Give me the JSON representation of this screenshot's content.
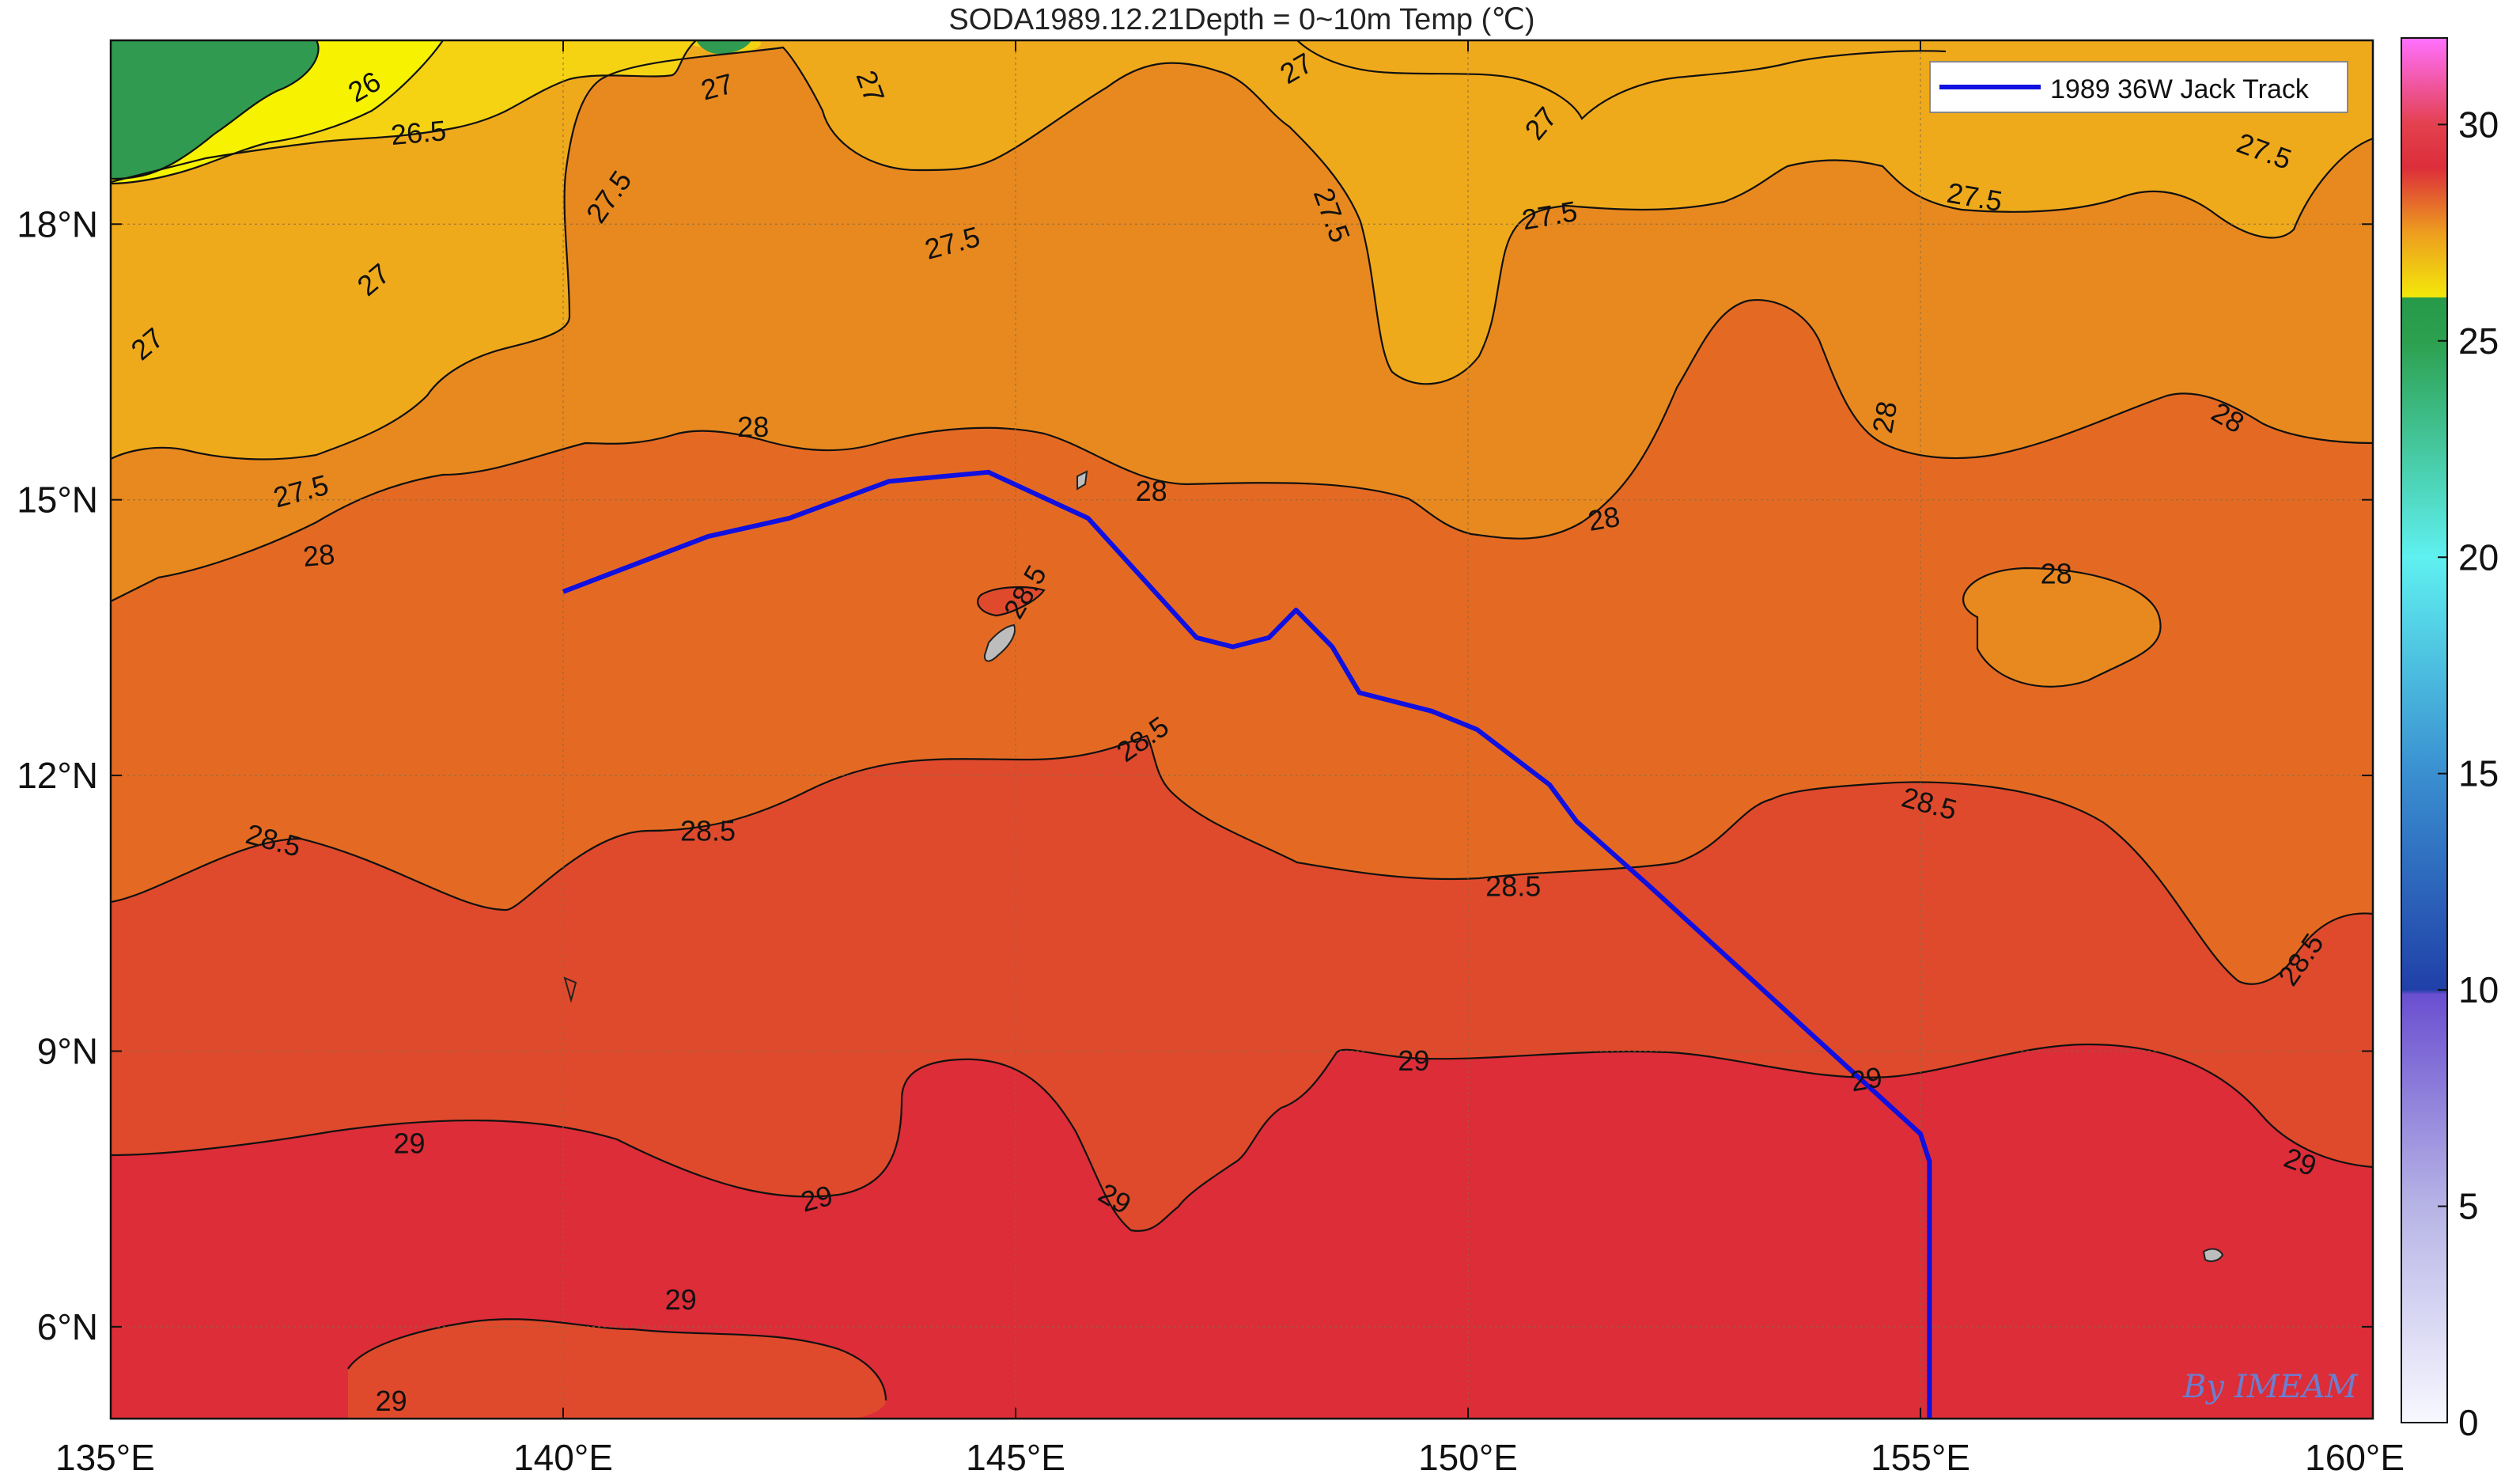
{
  "title": "SODA1989.12.21Depth = 0~10m Temp (℃)",
  "credit": "By IMEAM",
  "legend": {
    "label": "1989 36W Jack Track",
    "line_color": "#1010e0"
  },
  "map": {
    "lon_range": [
      135,
      160
    ],
    "lat_range": [
      5,
      20
    ],
    "x_ticks": [
      {
        "value": 135,
        "label": "135°E"
      },
      {
        "value": 140,
        "label": "140°E"
      },
      {
        "value": 145,
        "label": "145°E"
      },
      {
        "value": 150,
        "label": "150°E"
      },
      {
        "value": 155,
        "label": "155°E"
      },
      {
        "value": 160,
        "label": "160°E"
      }
    ],
    "y_ticks": [
      {
        "value": 6,
        "label": "6°N"
      },
      {
        "value": 9,
        "label": "9°N"
      },
      {
        "value": 12,
        "label": "12°N"
      },
      {
        "value": 15,
        "label": "15°N"
      },
      {
        "value": 18,
        "label": "18°N"
      }
    ],
    "grid": true
  },
  "colorbar": {
    "range": [
      0,
      32
    ],
    "ticks": [
      {
        "value": 0,
        "label": "0"
      },
      {
        "value": 5,
        "label": "5"
      },
      {
        "value": 10,
        "label": "10"
      },
      {
        "value": 15,
        "label": "15"
      },
      {
        "value": 20,
        "label": "20"
      },
      {
        "value": 25,
        "label": "25"
      },
      {
        "value": 30,
        "label": "30"
      }
    ],
    "stops": [
      {
        "value": 0,
        "color": "#f8f8ff"
      },
      {
        "value": 5,
        "color": "#b7b4e6"
      },
      {
        "value": 9.9,
        "color": "#6a4fd0"
      },
      {
        "value": 10,
        "color": "#2040a8"
      },
      {
        "value": 15,
        "color": "#3a8fd0"
      },
      {
        "value": 20,
        "color": "#5ff0f0"
      },
      {
        "value": 25,
        "color": "#2ca04e"
      },
      {
        "value": 26,
        "color": "#269a4a"
      },
      {
        "value": 26.01,
        "color": "#f3e80a"
      },
      {
        "value": 27.5,
        "color": "#ed9d1f"
      },
      {
        "value": 29,
        "color": "#dc2e3a"
      },
      {
        "value": 30,
        "color": "#e3404e"
      },
      {
        "value": 32,
        "color": "#ff70ff"
      }
    ]
  },
  "chart_data": {
    "type": "contour",
    "variable": "Temp (℃)",
    "levels": [
      {
        "value": 26,
        "color": "#2f9a50"
      },
      {
        "value": 26.5,
        "color": "#f6f200"
      },
      {
        "value": 27,
        "color": "#f5d313"
      },
      {
        "value": 27.5,
        "color": "#efaa1c"
      },
      {
        "value": 28,
        "color": "#e8891f"
      },
      {
        "value": 28.5,
        "color": "#e46a23"
      },
      {
        "value": 29,
        "color": "#df4a2c"
      },
      {
        "value": 29.5,
        "color": "#dc2d38"
      }
    ],
    "labels": [
      {
        "text": "26",
        "lon": 137.8,
        "lat": 19.5,
        "angle": -30
      },
      {
        "text": "26.5",
        "lon": 138.4,
        "lat": 19.0,
        "angle": -5
      },
      {
        "text": "27",
        "lon": 141.7,
        "lat": 19.5,
        "angle": -15
      },
      {
        "text": "27",
        "lon": 143.4,
        "lat": 19.5,
        "angle": 70
      },
      {
        "text": "27",
        "lon": 148.1,
        "lat": 19.7,
        "angle": -30
      },
      {
        "text": "27",
        "lon": 150.8,
        "lat": 19.1,
        "angle": -50
      },
      {
        "text": "27",
        "lon": 137.9,
        "lat": 17.4,
        "angle": -40
      },
      {
        "text": "27",
        "lon": 135.4,
        "lat": 16.7,
        "angle": -40
      },
      {
        "text": "27.5",
        "lon": 140.5,
        "lat": 18.3,
        "angle": -55
      },
      {
        "text": "27.5",
        "lon": 144.3,
        "lat": 17.8,
        "angle": -15
      },
      {
        "text": "27.5",
        "lon": 148.5,
        "lat": 18.1,
        "angle": 70
      },
      {
        "text": "27.5",
        "lon": 150.9,
        "lat": 18.1,
        "angle": -10
      },
      {
        "text": "27.5",
        "lon": 155.6,
        "lat": 18.3,
        "angle": 10
      },
      {
        "text": "27.5",
        "lon": 158.8,
        "lat": 18.8,
        "angle": 20
      },
      {
        "text": "27.5",
        "lon": 137.1,
        "lat": 15.1,
        "angle": -15
      },
      {
        "text": "28",
        "lon": 142.1,
        "lat": 15.8,
        "angle": 0
      },
      {
        "text": "28",
        "lon": 146.5,
        "lat": 15.1,
        "angle": 0
      },
      {
        "text": "28",
        "lon": 151.5,
        "lat": 14.8,
        "angle": -10
      },
      {
        "text": "28",
        "lon": 154.6,
        "lat": 15.9,
        "angle": -80
      },
      {
        "text": "28",
        "lon": 158.4,
        "lat": 15.9,
        "angle": 30
      },
      {
        "text": "28",
        "lon": 137.3,
        "lat": 14.4,
        "angle": -5
      },
      {
        "text": "28",
        "lon": 156.5,
        "lat": 14.2,
        "angle": 0
      },
      {
        "text": "28.5",
        "lon": 145.1,
        "lat": 14.0,
        "angle": -60
      },
      {
        "text": "28.5",
        "lon": 146.4,
        "lat": 12.4,
        "angle": -35
      },
      {
        "text": "28.5",
        "lon": 136.8,
        "lat": 11.3,
        "angle": 15
      },
      {
        "text": "28.5",
        "lon": 141.6,
        "lat": 11.4,
        "angle": 0
      },
      {
        "text": "28.5",
        "lon": 150.5,
        "lat": 10.8,
        "angle": 0
      },
      {
        "text": "28.5",
        "lon": 155.1,
        "lat": 11.7,
        "angle": 15
      },
      {
        "text": "28.5",
        "lon": 159.2,
        "lat": 10.0,
        "angle": -55
      },
      {
        "text": "29",
        "lon": 138.3,
        "lat": 8.0,
        "angle": 0
      },
      {
        "text": "29",
        "lon": 142.8,
        "lat": 7.4,
        "angle": -15
      },
      {
        "text": "29",
        "lon": 146.1,
        "lat": 7.4,
        "angle": 30
      },
      {
        "text": "29",
        "lon": 149.4,
        "lat": 8.9,
        "angle": 0
      },
      {
        "text": "29",
        "lon": 154.4,
        "lat": 8.7,
        "angle": -10
      },
      {
        "text": "29",
        "lon": 159.2,
        "lat": 7.8,
        "angle": 20
      },
      {
        "text": "29",
        "lon": 141.3,
        "lat": 6.3,
        "angle": 0
      },
      {
        "text": "29",
        "lon": 138.1,
        "lat": 5.2,
        "angle": 0
      }
    ],
    "track": {
      "name": "1989 36W Jack Track",
      "points": [
        {
          "lon": 140.0,
          "lat": 14.0
        },
        {
          "lon": 141.6,
          "lat": 14.6
        },
        {
          "lon": 142.5,
          "lat": 14.8
        },
        {
          "lon": 143.6,
          "lat": 15.2
        },
        {
          "lon": 144.7,
          "lat": 15.3
        },
        {
          "lon": 145.8,
          "lat": 14.8
        },
        {
          "lon": 147.0,
          "lat": 13.5
        },
        {
          "lon": 147.4,
          "lat": 13.4
        },
        {
          "lon": 147.8,
          "lat": 13.5
        },
        {
          "lon": 148.1,
          "lat": 13.8
        },
        {
          "lon": 148.5,
          "lat": 13.4
        },
        {
          "lon": 148.8,
          "lat": 12.9
        },
        {
          "lon": 149.6,
          "lat": 12.7
        },
        {
          "lon": 150.1,
          "lat": 12.5
        },
        {
          "lon": 150.9,
          "lat": 11.9
        },
        {
          "lon": 151.2,
          "lat": 11.5
        },
        {
          "lon": 152.0,
          "lat": 10.8
        },
        {
          "lon": 153.0,
          "lat": 9.9
        },
        {
          "lon": 154.0,
          "lat": 9.0
        },
        {
          "lon": 155.0,
          "lat": 8.1
        },
        {
          "lon": 155.1,
          "lat": 7.8
        },
        {
          "lon": 155.1,
          "lat": 5.0
        }
      ]
    }
  }
}
